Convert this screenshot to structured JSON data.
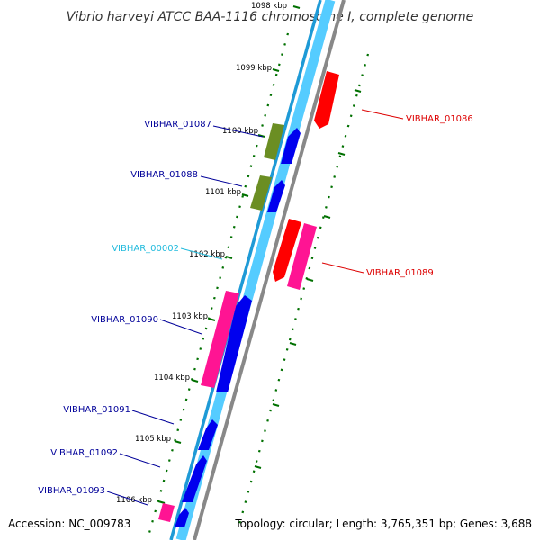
{
  "title": "Vibrio harveyi ATCC BAA-1116 chromosome I, complete genome",
  "accession": "Accession: NC_009783",
  "topology": "Topology: circular; Length: 3,765,351 bp; Genes: 3,688",
  "colors": {
    "backbone_gray": "#888888",
    "backbone_blue": "#1e9ad6",
    "backbone_light": "#55ccff",
    "cds": "#0000ee",
    "tick": "#007000",
    "label_navy": "#000099",
    "label_cyan": "#22bbdd",
    "label_red": "#dd0000",
    "feature_red": "#ff0000",
    "feature_pink": "#ff1493",
    "feature_olive": "#6b8e23"
  },
  "ticks": [
    "1098 kbp",
    "1099 kbp",
    "1100 kbp",
    "1101 kbp",
    "1102 kbp",
    "1103 kbp",
    "1104 kbp",
    "1105 kbp",
    "1106 kbp"
  ],
  "genes": [
    {
      "label": "VIBHAR_01086",
      "color": "#dd0000"
    },
    {
      "label": "VIBHAR_01087",
      "color": "#000099"
    },
    {
      "label": "VIBHAR_01088",
      "color": "#000099"
    },
    {
      "label": "VIBHAR_00002",
      "color": "#22bbdd"
    },
    {
      "label": "VIBHAR_01089",
      "color": "#dd0000"
    },
    {
      "label": "VIBHAR_01090",
      "color": "#000099"
    },
    {
      "label": "VIBHAR_01091",
      "color": "#000099"
    },
    {
      "label": "VIBHAR_01092",
      "color": "#000099"
    },
    {
      "label": "VIBHAR_01093",
      "color": "#000099"
    }
  ]
}
